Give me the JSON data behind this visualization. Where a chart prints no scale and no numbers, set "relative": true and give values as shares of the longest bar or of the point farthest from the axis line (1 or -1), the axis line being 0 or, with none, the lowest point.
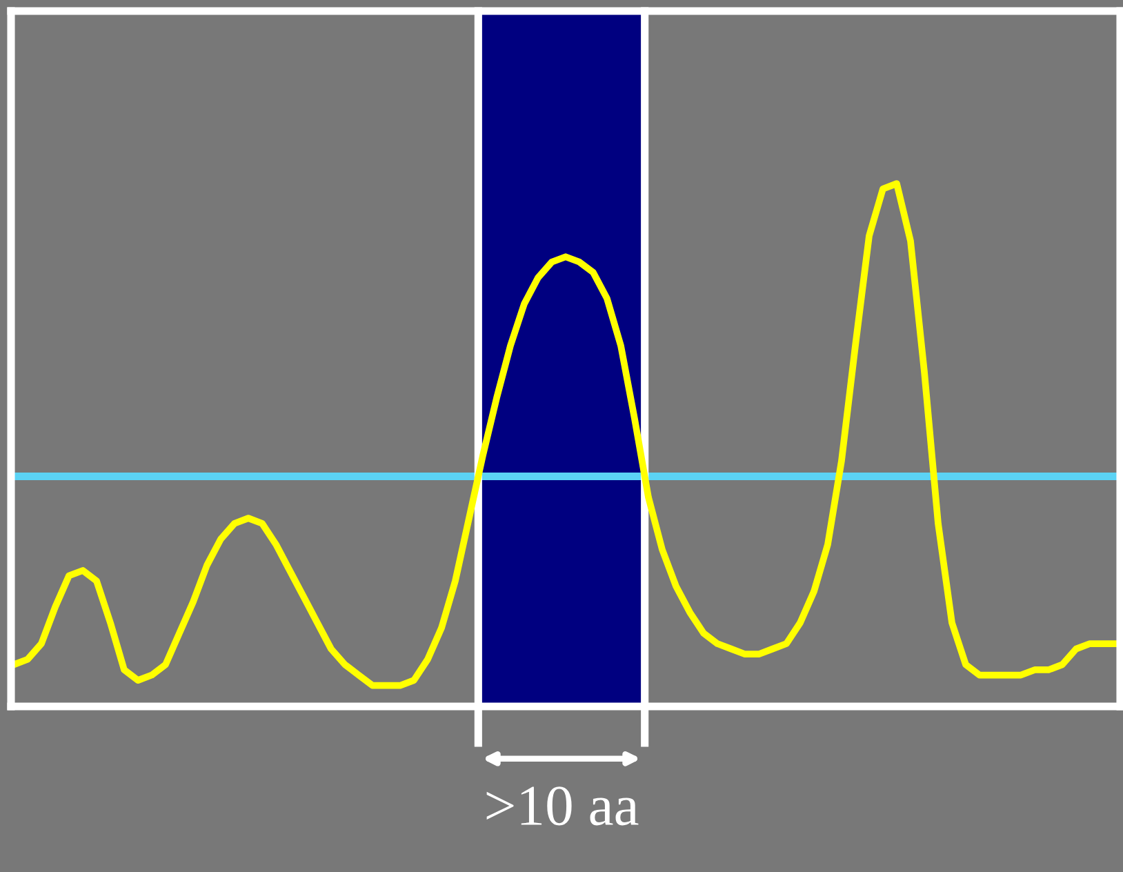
{
  "chart_data": {
    "type": "line",
    "relative": true,
    "tick_labels": false,
    "categories": [
      null,
      null,
      null,
      null,
      null,
      null,
      null,
      null,
      null,
      null,
      null,
      null,
      null,
      null,
      null,
      null,
      null,
      null,
      null,
      null,
      null,
      null,
      null,
      null,
      null,
      null,
      null,
      null,
      null,
      null,
      null,
      null,
      null,
      null,
      null,
      null,
      null,
      null,
      null,
      null,
      null,
      null,
      null,
      null,
      null,
      null,
      null,
      null,
      null,
      null,
      null,
      null,
      null,
      null,
      null,
      null,
      null,
      null,
      null,
      null,
      null,
      null,
      null,
      null,
      null,
      null,
      null,
      null,
      null,
      null,
      null,
      null,
      null,
      null,
      null,
      null,
      null,
      null,
      null,
      null,
      null
    ],
    "series": [
      {
        "color": "#ffff00",
        "values": [
          0.08,
          0.09,
          0.12,
          0.19,
          0.25,
          0.26,
          0.24,
          0.16,
          0.07,
          0.05,
          0.06,
          0.08,
          0.14,
          0.2,
          0.27,
          0.32,
          0.35,
          0.36,
          0.35,
          0.31,
          0.26,
          0.21,
          0.16,
          0.11,
          0.08,
          0.06,
          0.04,
          0.04,
          0.04,
          0.05,
          0.09,
          0.15,
          0.24,
          0.36,
          0.48,
          0.59,
          0.69,
          0.77,
          0.82,
          0.85,
          0.86,
          0.85,
          0.83,
          0.78,
          0.69,
          0.55,
          0.4,
          0.3,
          0.23,
          0.18,
          0.14,
          0.12,
          0.11,
          0.1,
          0.1,
          0.11,
          0.12,
          0.16,
          0.22,
          0.31,
          0.47,
          0.69,
          0.9,
          0.99,
          1.0,
          0.89,
          0.64,
          0.35,
          0.16,
          0.08,
          0.06,
          0.06,
          0.06,
          0.06,
          0.07,
          0.07,
          0.08,
          0.11,
          0.12,
          0.12,
          0.12
        ]
      }
    ],
    "ref_lines": [
      {
        "axis": "y",
        "value": 0.44,
        "color": "#5bd3f5"
      }
    ],
    "annotations": [
      ">10 aa"
    ]
  }
}
